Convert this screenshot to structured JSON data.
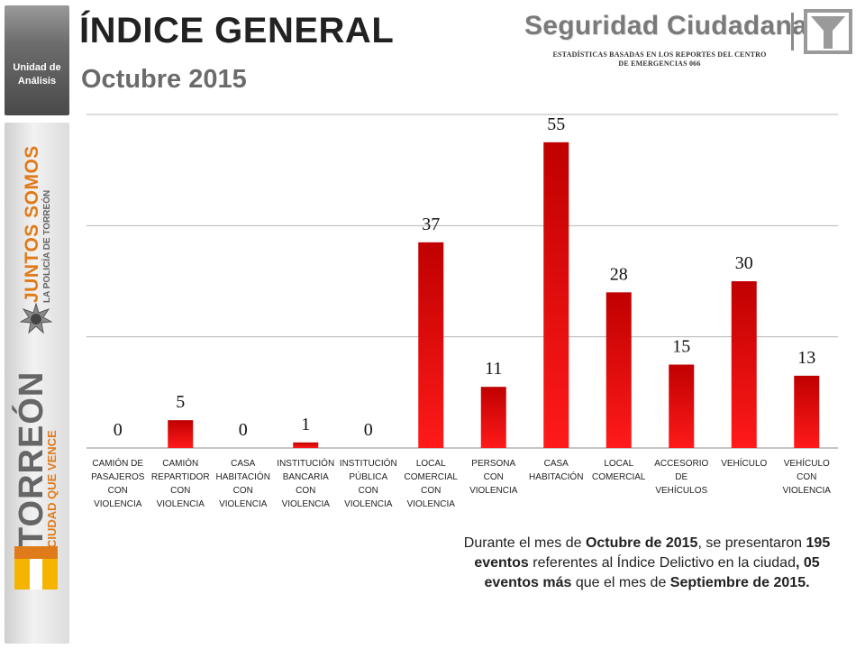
{
  "sidebar": {
    "unit_label_line1": "Unidad de",
    "unit_label_line2": "Análisis",
    "brand_line1": "JUNTOS SOMOS",
    "brand_line2": "LA POLICÍA DE TORREÓN",
    "city_name": "TORREÓN",
    "city_slogan": "CIUDAD QUE VENCE"
  },
  "header": {
    "title": "ÍNDICE GENERAL",
    "subtitle": "Octubre 2015",
    "brand": "Seguridad Ciudadana",
    "caption_line1": "ESTADÍSTICAS BASADAS EN LOS REPORTES DEL CENTRO",
    "caption_line2": "DE EMERGENCIAS 066"
  },
  "chart_data": {
    "type": "bar",
    "categories": [
      [
        "CAMIÓN DE",
        "PASAJEROS",
        "CON",
        "VIOLENCIA"
      ],
      [
        "CAMIÓN",
        "REPARTIDOR",
        "CON",
        "VIOLENCIA"
      ],
      [
        "CASA",
        "HABITACIÓN",
        "CON",
        "VIOLENCIA"
      ],
      [
        "INSTITUCIÓN",
        "BANCARIA",
        "CON",
        "VIOLENCIA"
      ],
      [
        "INSTITUCIÓN",
        "PÚBLICA",
        "CON",
        "VIOLENCIA"
      ],
      [
        "LOCAL",
        "COMERCIAL",
        "CON",
        "VIOLENCIA"
      ],
      [
        "PERSONA",
        "CON",
        "VIOLENCIA"
      ],
      [
        "CASA",
        "HABITACIÓN"
      ],
      [
        "LOCAL",
        "COMERCIAL"
      ],
      [
        "ACCESORIO",
        "DE",
        "VEHÍCULOS"
      ],
      [
        "VEHÍCULO"
      ],
      [
        "VEHÍCULO",
        "CON",
        "VIOLENCIA"
      ]
    ],
    "values": [
      0,
      5,
      0,
      1,
      0,
      37,
      11,
      55,
      28,
      15,
      30,
      13
    ],
    "ylim": [
      0,
      60
    ],
    "gridlines": [
      20,
      40,
      60
    ],
    "grid": true,
    "legend": "none",
    "bar_color_top": "#c00000",
    "bar_color_bottom": "#ff1a1a"
  },
  "summary": {
    "p1": "Durante el mes de ",
    "b1": "Octubre de 2015",
    "p2": ", se presentaron ",
    "b2": "195 eventos",
    "p3": " referentes al Índice Delictivo en la ciudad",
    "b3": ", 05 eventos más",
    "p4": " que el mes de ",
    "b4": "Septiembre de 2015."
  }
}
